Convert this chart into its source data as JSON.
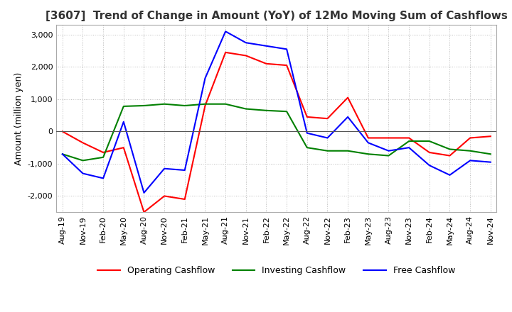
{
  "title": "[3607]  Trend of Change in Amount (YoY) of 12Mo Moving Sum of Cashflows",
  "ylabel": "Amount (million yen)",
  "ylim": [
    -2500,
    3300
  ],
  "yticks": [
    -2000,
    -1000,
    0,
    1000,
    2000,
    3000
  ],
  "x_labels": [
    "Aug-19",
    "Nov-19",
    "Feb-20",
    "May-20",
    "Aug-20",
    "Nov-20",
    "Feb-21",
    "May-21",
    "Aug-21",
    "Nov-21",
    "Feb-22",
    "May-22",
    "Aug-22",
    "Nov-22",
    "Feb-23",
    "May-23",
    "Aug-23",
    "Nov-23",
    "Feb-24",
    "May-24",
    "Aug-24",
    "Nov-24"
  ],
  "operating": [
    0,
    -350,
    -650,
    -500,
    -2500,
    -2000,
    -2100,
    800,
    2450,
    2350,
    2100,
    2050,
    450,
    400,
    1050,
    -200,
    -200,
    -200,
    -650,
    -750,
    -200,
    -150
  ],
  "investing": [
    -700,
    -900,
    -800,
    780,
    800,
    850,
    800,
    850,
    850,
    700,
    650,
    620,
    -500,
    -600,
    -600,
    -700,
    -750,
    -300,
    -300,
    -550,
    -600,
    -700
  ],
  "free": [
    -700,
    -1300,
    -1450,
    300,
    -1900,
    -1150,
    -1200,
    1650,
    3100,
    2750,
    2650,
    2550,
    -50,
    -200,
    450,
    -350,
    -600,
    -500,
    -1050,
    -1350,
    -900,
    -950
  ],
  "op_color": "#ff0000",
  "inv_color": "#008000",
  "free_color": "#0000ff",
  "bg_color": "#ffffff",
  "grid_color": "#bbbbbb",
  "title_fontsize": 11,
  "label_fontsize": 9,
  "tick_fontsize": 8
}
